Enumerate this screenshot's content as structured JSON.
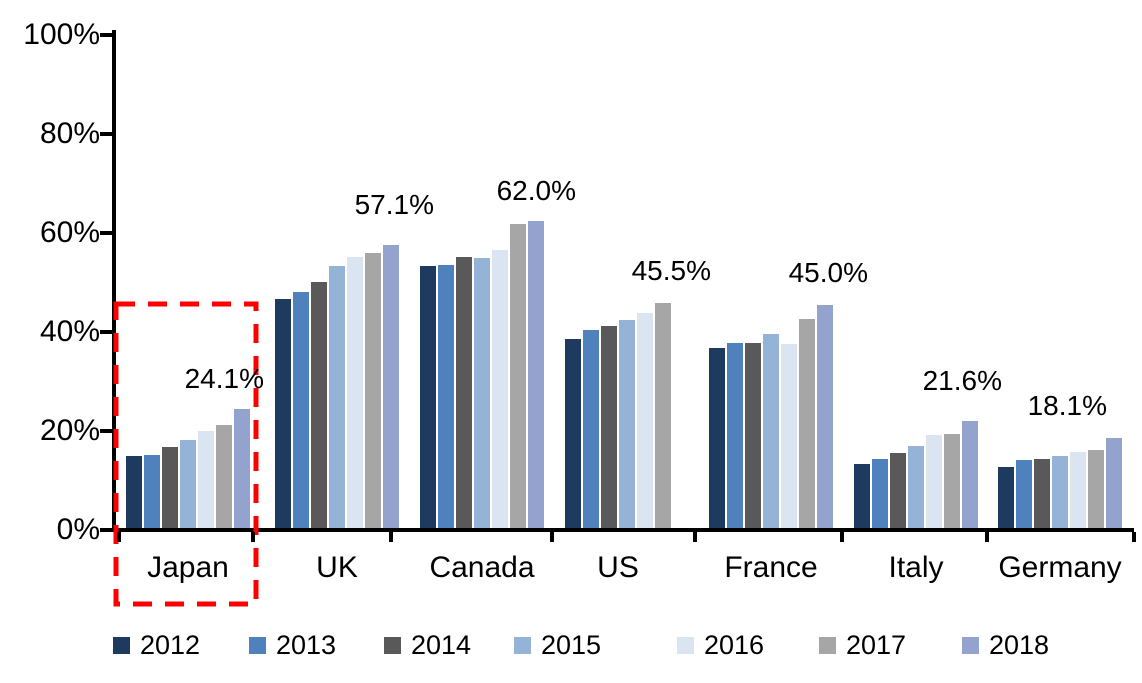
{
  "chart_data": {
    "type": "bar",
    "title": "",
    "xlabel": "",
    "ylabel": "",
    "categories": [
      "Japan",
      "UK",
      "Canada",
      "US",
      "France",
      "Italy",
      "Germany"
    ],
    "series": [
      {
        "name": "2012",
        "color": "#1F3A5F",
        "values": [
          14.6,
          46.3,
          52.9,
          38.2,
          36.3,
          12.9,
          12.3
        ]
      },
      {
        "name": "2013",
        "color": "#4F81BD",
        "values": [
          14.8,
          47.7,
          53.2,
          40.0,
          37.4,
          13.9,
          13.7
        ]
      },
      {
        "name": "2014",
        "color": "#595959",
        "values": [
          16.4,
          49.8,
          54.7,
          40.9,
          37.3,
          15.1,
          14.0
        ]
      },
      {
        "name": "2015",
        "color": "#95B3D7",
        "values": [
          17.7,
          52.9,
          54.6,
          42.0,
          39.1,
          16.6,
          14.5
        ]
      },
      {
        "name": "2016",
        "color": "#DBE5F1",
        "values": [
          19.6,
          54.7,
          56.1,
          43.5,
          37.2,
          18.7,
          15.3
        ]
      },
      {
        "name": "2017",
        "color": "#A6A6A6",
        "values": [
          20.9,
          55.6,
          61.5,
          45.5,
          42.2,
          19.0,
          15.7
        ]
      },
      {
        "name": "2018",
        "color": "#93A3CE",
        "values": [
          24.1,
          57.1,
          62.0,
          null,
          45.0,
          21.6,
          18.1
        ]
      }
    ],
    "data_labels": [
      "24.1%",
      "57.1%",
      "62.0%",
      "45.5%",
      "45.0%",
      "21.6%",
      "18.1%"
    ],
    "y_axis": {
      "min": 0,
      "max": 100,
      "tick_step": 20,
      "ticks": [
        "0%",
        "20%",
        "40%",
        "60%",
        "80%",
        "100%"
      ]
    },
    "grid": false,
    "legend": {
      "position": "bottom",
      "entries": [
        "2012",
        "2013",
        "2014",
        "2015",
        "2016",
        "2017",
        "2018"
      ]
    },
    "annotations": {
      "highlight_box": {
        "target": "Japan",
        "color": "#FF0000",
        "style": "dashed"
      }
    }
  }
}
